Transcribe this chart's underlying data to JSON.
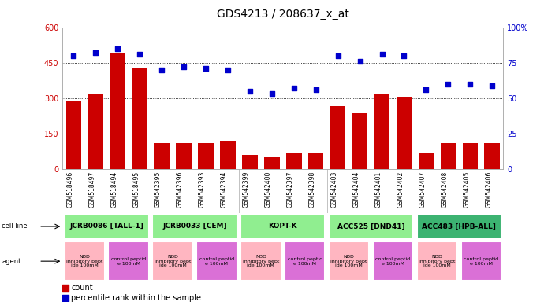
{
  "title": "GDS4213 / 208637_x_at",
  "samples": [
    "GSM518496",
    "GSM518497",
    "GSM518494",
    "GSM518495",
    "GSM542395",
    "GSM542396",
    "GSM542393",
    "GSM542394",
    "GSM542399",
    "GSM542400",
    "GSM542397",
    "GSM542398",
    "GSM542403",
    "GSM542404",
    "GSM542401",
    "GSM542402",
    "GSM542407",
    "GSM542408",
    "GSM542405",
    "GSM542406"
  ],
  "counts": [
    285,
    320,
    490,
    430,
    110,
    110,
    110,
    120,
    60,
    50,
    70,
    65,
    265,
    235,
    320,
    305,
    65,
    110,
    110,
    110
  ],
  "percentile": [
    80,
    82,
    85,
    81,
    70,
    72,
    71,
    70,
    55,
    53,
    57,
    56,
    80,
    76,
    81,
    80,
    56,
    60,
    60,
    59
  ],
  "ylim_left": [
    0,
    600
  ],
  "ylim_right": [
    0,
    100
  ],
  "yticks_left": [
    0,
    150,
    300,
    450,
    600
  ],
  "yticks_right": [
    0,
    25,
    50,
    75,
    100
  ],
  "cell_lines": [
    {
      "label": "JCRB0086 [TALL-1]",
      "start": 0,
      "end": 4,
      "color": "#90EE90"
    },
    {
      "label": "JCRB0033 [CEM]",
      "start": 4,
      "end": 8,
      "color": "#90EE90"
    },
    {
      "label": "KOPT-K",
      "start": 8,
      "end": 12,
      "color": "#90EE90"
    },
    {
      "label": "ACC525 [DND41]",
      "start": 12,
      "end": 16,
      "color": "#90EE90"
    },
    {
      "label": "ACC483 [HPB-ALL]",
      "start": 16,
      "end": 20,
      "color": "#3CB371"
    }
  ],
  "agents": [
    {
      "label": "NBD\ninhibitory pept\nide 100mM",
      "start": 0,
      "end": 2,
      "color": "#FFB6C1"
    },
    {
      "label": "control peptid\ne 100mM",
      "start": 2,
      "end": 4,
      "color": "#DA70D6"
    },
    {
      "label": "NBD\ninhibitory pept\nide 100mM",
      "start": 4,
      "end": 6,
      "color": "#FFB6C1"
    },
    {
      "label": "control peptid\ne 100mM",
      "start": 6,
      "end": 8,
      "color": "#DA70D6"
    },
    {
      "label": "NBD\ninhibitory pept\nide 100mM",
      "start": 8,
      "end": 10,
      "color": "#FFB6C1"
    },
    {
      "label": "control peptid\ne 100mM",
      "start": 10,
      "end": 12,
      "color": "#DA70D6"
    },
    {
      "label": "NBD\ninhibitory pept\nide 100mM",
      "start": 12,
      "end": 14,
      "color": "#FFB6C1"
    },
    {
      "label": "control peptid\ne 100mM",
      "start": 14,
      "end": 16,
      "color": "#DA70D6"
    },
    {
      "label": "NBD\ninhibitory pept\nide 100mM",
      "start": 16,
      "end": 18,
      "color": "#FFB6C1"
    },
    {
      "label": "control peptid\ne 100mM",
      "start": 18,
      "end": 20,
      "color": "#DA70D6"
    }
  ],
  "bar_color": "#CC0000",
  "dot_color": "#0000CC",
  "background_color": "#ffffff",
  "title_fontsize": 10,
  "tick_fontsize": 7,
  "sample_fontsize": 5.5,
  "annot_fontsize": 6.5
}
